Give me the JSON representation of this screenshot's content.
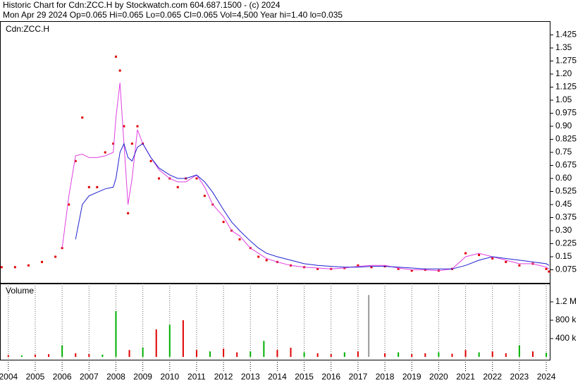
{
  "chart_data": [
    {
      "type": "line",
      "title": "Historic Chart for Cdn:ZCC.H by Stockwatch.com 604.687.1500 - (c) 2024",
      "subtitle": "Mon Apr 29 2024  Op=0.065  Hi=0.065  Lo=0.065  Cl=0.065  Vol=4,500  Year hi=1.40  lo=0.035",
      "annotation": "Cdn:ZCC.H",
      "x": [
        2003.75,
        2004.25,
        2004.75,
        2005.25,
        2005.75,
        2006.0,
        2006.25,
        2006.5,
        2006.75,
        2007.0,
        2007.3,
        2007.6,
        2007.9,
        2008.0,
        2008.15,
        2008.3,
        2008.45,
        2008.6,
        2008.8,
        2009.0,
        2009.3,
        2009.6,
        2010.0,
        2010.3,
        2010.6,
        2011.0,
        2011.3,
        2011.6,
        2012.0,
        2012.3,
        2012.6,
        2013.0,
        2013.3,
        2013.6,
        2014.0,
        2014.5,
        2015.0,
        2015.5,
        2016.0,
        2016.5,
        2017.0,
        2017.5,
        2018.0,
        2018.5,
        2019.0,
        2019.5,
        2020.0,
        2020.5,
        2021.0,
        2021.5,
        2022.0,
        2022.5,
        2023.0,
        2023.5,
        2024.0,
        2024.1
      ],
      "series": [
        {
          "color": "#e00000",
          "style": "dots",
          "values": [
            0.09,
            0.09,
            0.1,
            0.12,
            0.15,
            0.2,
            0.45,
            0.7,
            0.95,
            0.55,
            0.55,
            0.75,
            0.8,
            1.3,
            1.22,
            0.9,
            0.4,
            0.8,
            0.9,
            0.8,
            0.7,
            0.6,
            0.6,
            0.55,
            0.6,
            0.6,
            0.5,
            0.45,
            0.35,
            0.3,
            0.25,
            0.2,
            0.15,
            0.13,
            0.12,
            0.1,
            0.09,
            0.08,
            0.08,
            0.085,
            0.1,
            0.09,
            0.095,
            0.08,
            0.07,
            0.075,
            0.07,
            0.08,
            0.17,
            0.16,
            0.14,
            0.12,
            0.1,
            0.11,
            0.08,
            0.065
          ]
        },
        {
          "color": "#e040e0",
          "style": "line",
          "values": [
            null,
            null,
            null,
            null,
            null,
            0.2,
            0.5,
            0.73,
            0.74,
            0.72,
            0.72,
            0.73,
            0.75,
            0.95,
            1.15,
            0.8,
            0.45,
            0.6,
            0.88,
            0.8,
            0.72,
            0.65,
            0.6,
            0.58,
            0.58,
            0.62,
            0.55,
            0.45,
            0.38,
            0.3,
            0.27,
            0.2,
            0.17,
            0.14,
            0.12,
            0.1,
            0.09,
            0.085,
            0.08,
            0.085,
            0.095,
            0.1,
            0.1,
            0.085,
            0.075,
            0.075,
            0.07,
            0.08,
            0.15,
            0.17,
            0.15,
            0.13,
            0.11,
            0.11,
            0.09,
            0.08
          ]
        },
        {
          "color": "#2020d0",
          "style": "line",
          "values": [
            null,
            null,
            null,
            null,
            null,
            null,
            null,
            0.25,
            0.45,
            0.5,
            0.52,
            0.54,
            0.55,
            0.6,
            0.75,
            0.8,
            0.72,
            0.7,
            0.78,
            0.8,
            0.72,
            0.66,
            0.62,
            0.6,
            0.6,
            0.62,
            0.58,
            0.52,
            0.42,
            0.35,
            0.3,
            0.24,
            0.2,
            0.17,
            0.15,
            0.13,
            0.11,
            0.1,
            0.095,
            0.09,
            0.09,
            0.095,
            0.095,
            0.09,
            0.085,
            0.08,
            0.08,
            0.08,
            0.1,
            0.13,
            0.15,
            0.14,
            0.13,
            0.12,
            0.11,
            0.1
          ]
        }
      ],
      "xlim": [
        2003.69,
        2024.13
      ],
      "ylim": [
        0,
        1.5
      ],
      "yticks": [
        0.075,
        0.15,
        0.225,
        {
          "value": 0.3,
          "label": "0.30"
        },
        0.375,
        0.45,
        0.525,
        {
          "value": 0.6,
          "label": "0.60"
        },
        0.675,
        0.75,
        0.825,
        {
          "value": 0.9,
          "label": "0.90"
        },
        0.975,
        1.05,
        1.125,
        {
          "value": 1.2,
          "label": "1.20"
        },
        1.275,
        1.35,
        1.425
      ]
    },
    {
      "type": "bar",
      "title": "Volume",
      "x": [
        2004.0,
        2004.5,
        2005.0,
        2005.5,
        2006.0,
        2006.5,
        2007.0,
        2007.5,
        2008.0,
        2008.5,
        2009.0,
        2009.5,
        2010.0,
        2010.5,
        2011.0,
        2011.5,
        2012.0,
        2012.5,
        2013.0,
        2013.5,
        2014.0,
        2014.5,
        2015.0,
        2015.5,
        2016.0,
        2016.5,
        2017.0,
        2017.4,
        2018.0,
        2018.5,
        2019.0,
        2019.5,
        2020.0,
        2020.5,
        2021.0,
        2021.5,
        2022.0,
        2022.5,
        2023.0,
        2023.5,
        2024.0
      ],
      "values": [
        40000,
        30000,
        50000,
        60000,
        250000,
        80000,
        60000,
        50000,
        1000000,
        150000,
        200000,
        600000,
        700000,
        800000,
        150000,
        120000,
        180000,
        100000,
        120000,
        350000,
        150000,
        200000,
        100000,
        80000,
        60000,
        100000,
        120000,
        1350000,
        80000,
        100000,
        60000,
        80000,
        100000,
        70000,
        150000,
        100000,
        120000,
        80000,
        250000,
        120000,
        90000
      ],
      "colors": [
        "#e00000",
        "#00b000",
        "#e00000",
        "#e00000",
        "#00b000",
        "#e00000",
        "#e00000",
        "#00b000",
        "#00b000",
        "#e00000",
        "#00b000",
        "#e00000",
        "#00b000",
        "#e00000",
        "#e00000",
        "#00b000",
        "#e00000",
        "#e00000",
        "#00b000",
        "#00b000",
        "#e00000",
        "#e00000",
        "#00b000",
        "#e00000",
        "#e00000",
        "#00b000",
        "#e00000",
        "#999999",
        "#e00000",
        "#00b000",
        "#e00000",
        "#e00000",
        "#00b000",
        "#e00000",
        "#e00000",
        "#00b000",
        "#e00000",
        "#e00000",
        "#00b000",
        "#e00000",
        "#00b000"
      ],
      "xlim": [
        2003.69,
        2024.13
      ],
      "ylim": [
        0,
        1600000
      ],
      "yticks": [
        {
          "value": 400000,
          "label": "400 k"
        },
        {
          "value": 800000,
          "label": "800 k"
        },
        {
          "value": 1200000,
          "label": "1.2 M"
        }
      ],
      "xticks": [
        2004,
        2005,
        2006,
        2007,
        2008,
        2009,
        2010,
        2011,
        2012,
        2013,
        2014,
        2015,
        2016,
        2017,
        2018,
        2019,
        2020,
        2021,
        2022,
        2023,
        2024
      ],
      "grid": true
    }
  ]
}
